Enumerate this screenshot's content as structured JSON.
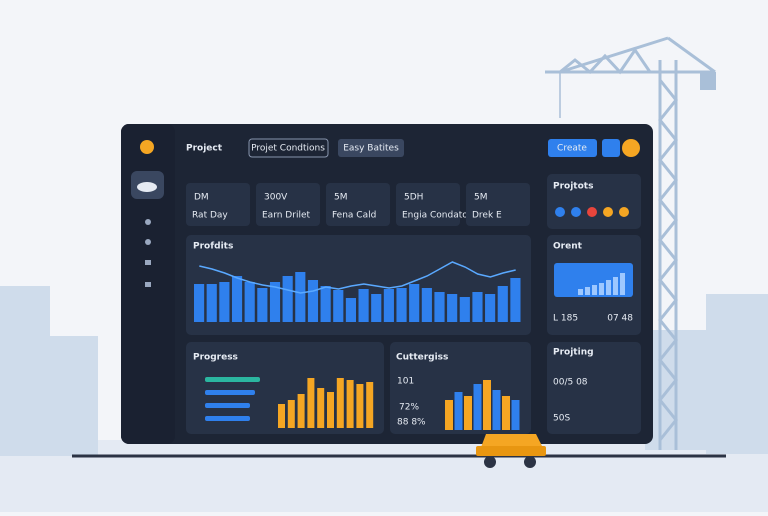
{
  "header": {
    "title": "Project",
    "tabs": [
      "Projet Condtions",
      "Easy Batites"
    ],
    "button": "Create"
  },
  "stats": [
    {
      "value": "DM",
      "label": "Rat Day"
    },
    {
      "value": "300V",
      "label": "Earn Drilet"
    },
    {
      "value": "5M",
      "label": "Fena Cald"
    },
    {
      "value": "5DH",
      "label": "Engia Condatos"
    },
    {
      "value": "5M",
      "label": "Drek E"
    }
  ],
  "profits": {
    "title": "Profdits",
    "values": [
      38,
      38,
      40,
      46,
      40,
      34,
      40,
      46,
      50,
      42,
      36,
      32,
      24,
      33,
      28,
      33,
      34,
      38,
      34,
      30,
      28,
      25,
      30,
      28,
      36,
      44
    ],
    "trend": [
      56,
      53,
      49,
      44,
      40,
      37,
      35,
      32,
      29,
      31,
      35,
      33,
      36,
      38,
      36,
      34,
      36,
      41,
      46,
      53,
      60,
      55,
      48,
      45,
      49,
      52
    ],
    "color": "#2f80ed"
  },
  "progress": {
    "title": "Progress",
    "bars": [
      55,
      50,
      45,
      45
    ],
    "columns": [
      24,
      28,
      34,
      50,
      40,
      36,
      50,
      48,
      44,
      46
    ],
    "color": "#f5a623"
  },
  "cuttergiss": {
    "title": "Cuttergiss",
    "value": "101",
    "rows": [
      "72%",
      "88 8%"
    ],
    "columns": [
      30,
      38,
      34,
      46,
      50,
      40,
      34,
      30
    ],
    "colors": [
      "#f5a623",
      "#2f80ed"
    ]
  },
  "projtots": {
    "title": "Projtots",
    "dots": [
      "#2f80ed",
      "#2f80ed",
      "#e8453c",
      "#f5a623",
      "#f5a623"
    ]
  },
  "orent": {
    "title": "Orent",
    "values": [
      6,
      8,
      10,
      12,
      15,
      18,
      22
    ],
    "left": "L 185",
    "right": "07 48"
  },
  "projting": {
    "title": "Projting",
    "values": [
      "00/5 08",
      "50S"
    ]
  }
}
